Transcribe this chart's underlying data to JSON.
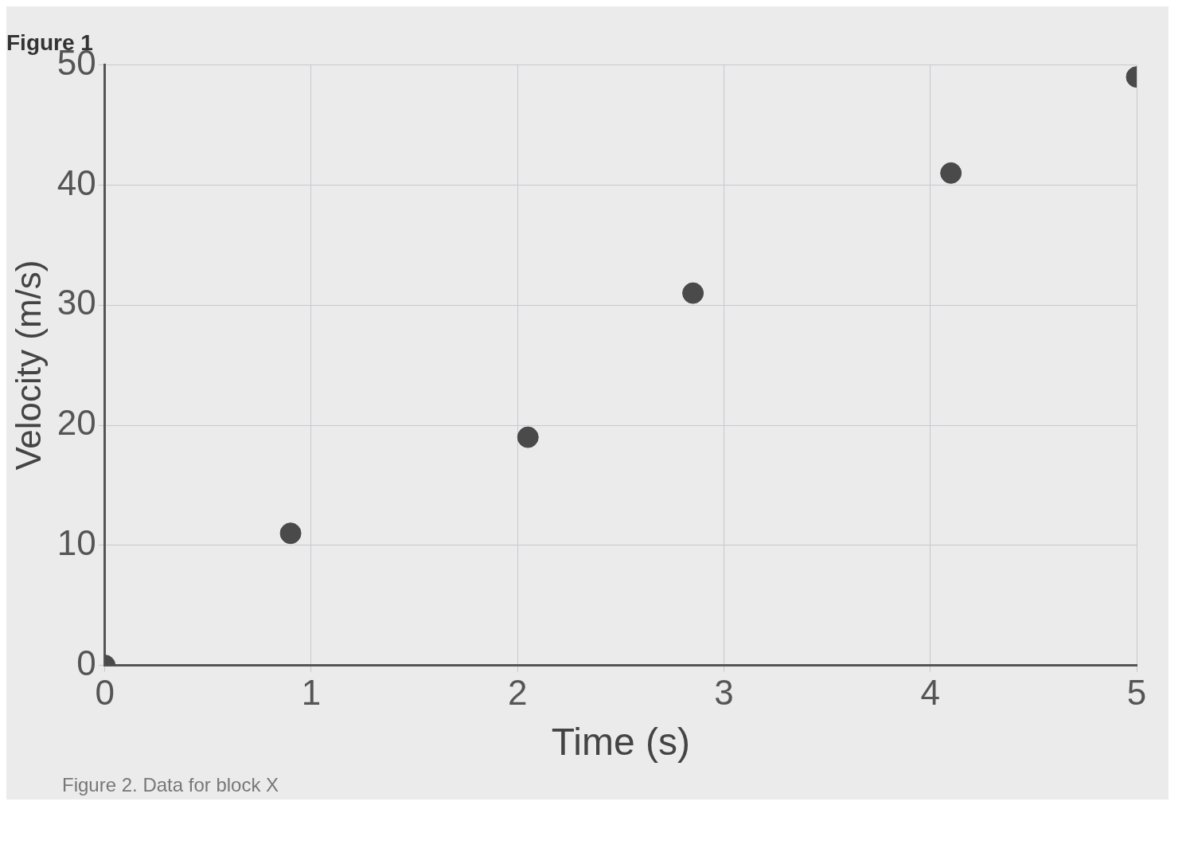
{
  "chart_data": {
    "type": "scatter",
    "title": "Figure 1",
    "xlabel": "Time (s)",
    "ylabel": "Velocity (m/s)",
    "x": [
      0,
      0.9,
      2.05,
      2.85,
      4.1,
      5
    ],
    "values": [
      0,
      11,
      19,
      31,
      41,
      49
    ],
    "color": "#4a4a4a",
    "marker": "circle",
    "grid": true,
    "xlim": [
      0,
      5
    ],
    "xticks": [
      0,
      1,
      2,
      3,
      4,
      5
    ],
    "ylim": [
      0,
      50
    ],
    "yticks": [
      0,
      10,
      20,
      30,
      40,
      50
    ],
    "annotations": [
      "Figure 2. Data for block X"
    ]
  }
}
